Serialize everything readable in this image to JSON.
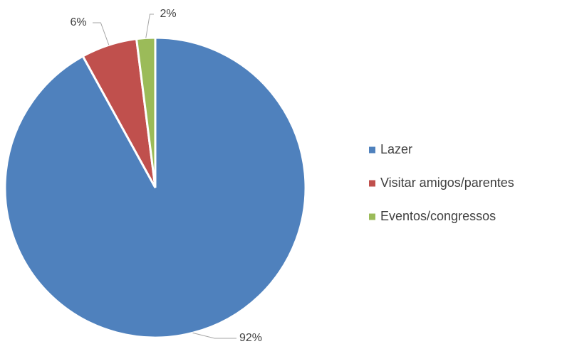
{
  "chart_data": {
    "type": "pie",
    "categories": [
      "Lazer",
      "Visitar amigos/parentes",
      "Eventos/congressos"
    ],
    "values": [
      92,
      6,
      2
    ],
    "value_labels": [
      "92%",
      "6%",
      "2%"
    ],
    "colors": [
      "#4f81bd",
      "#c0504d",
      "#9bbb59"
    ],
    "legend": "right"
  }
}
